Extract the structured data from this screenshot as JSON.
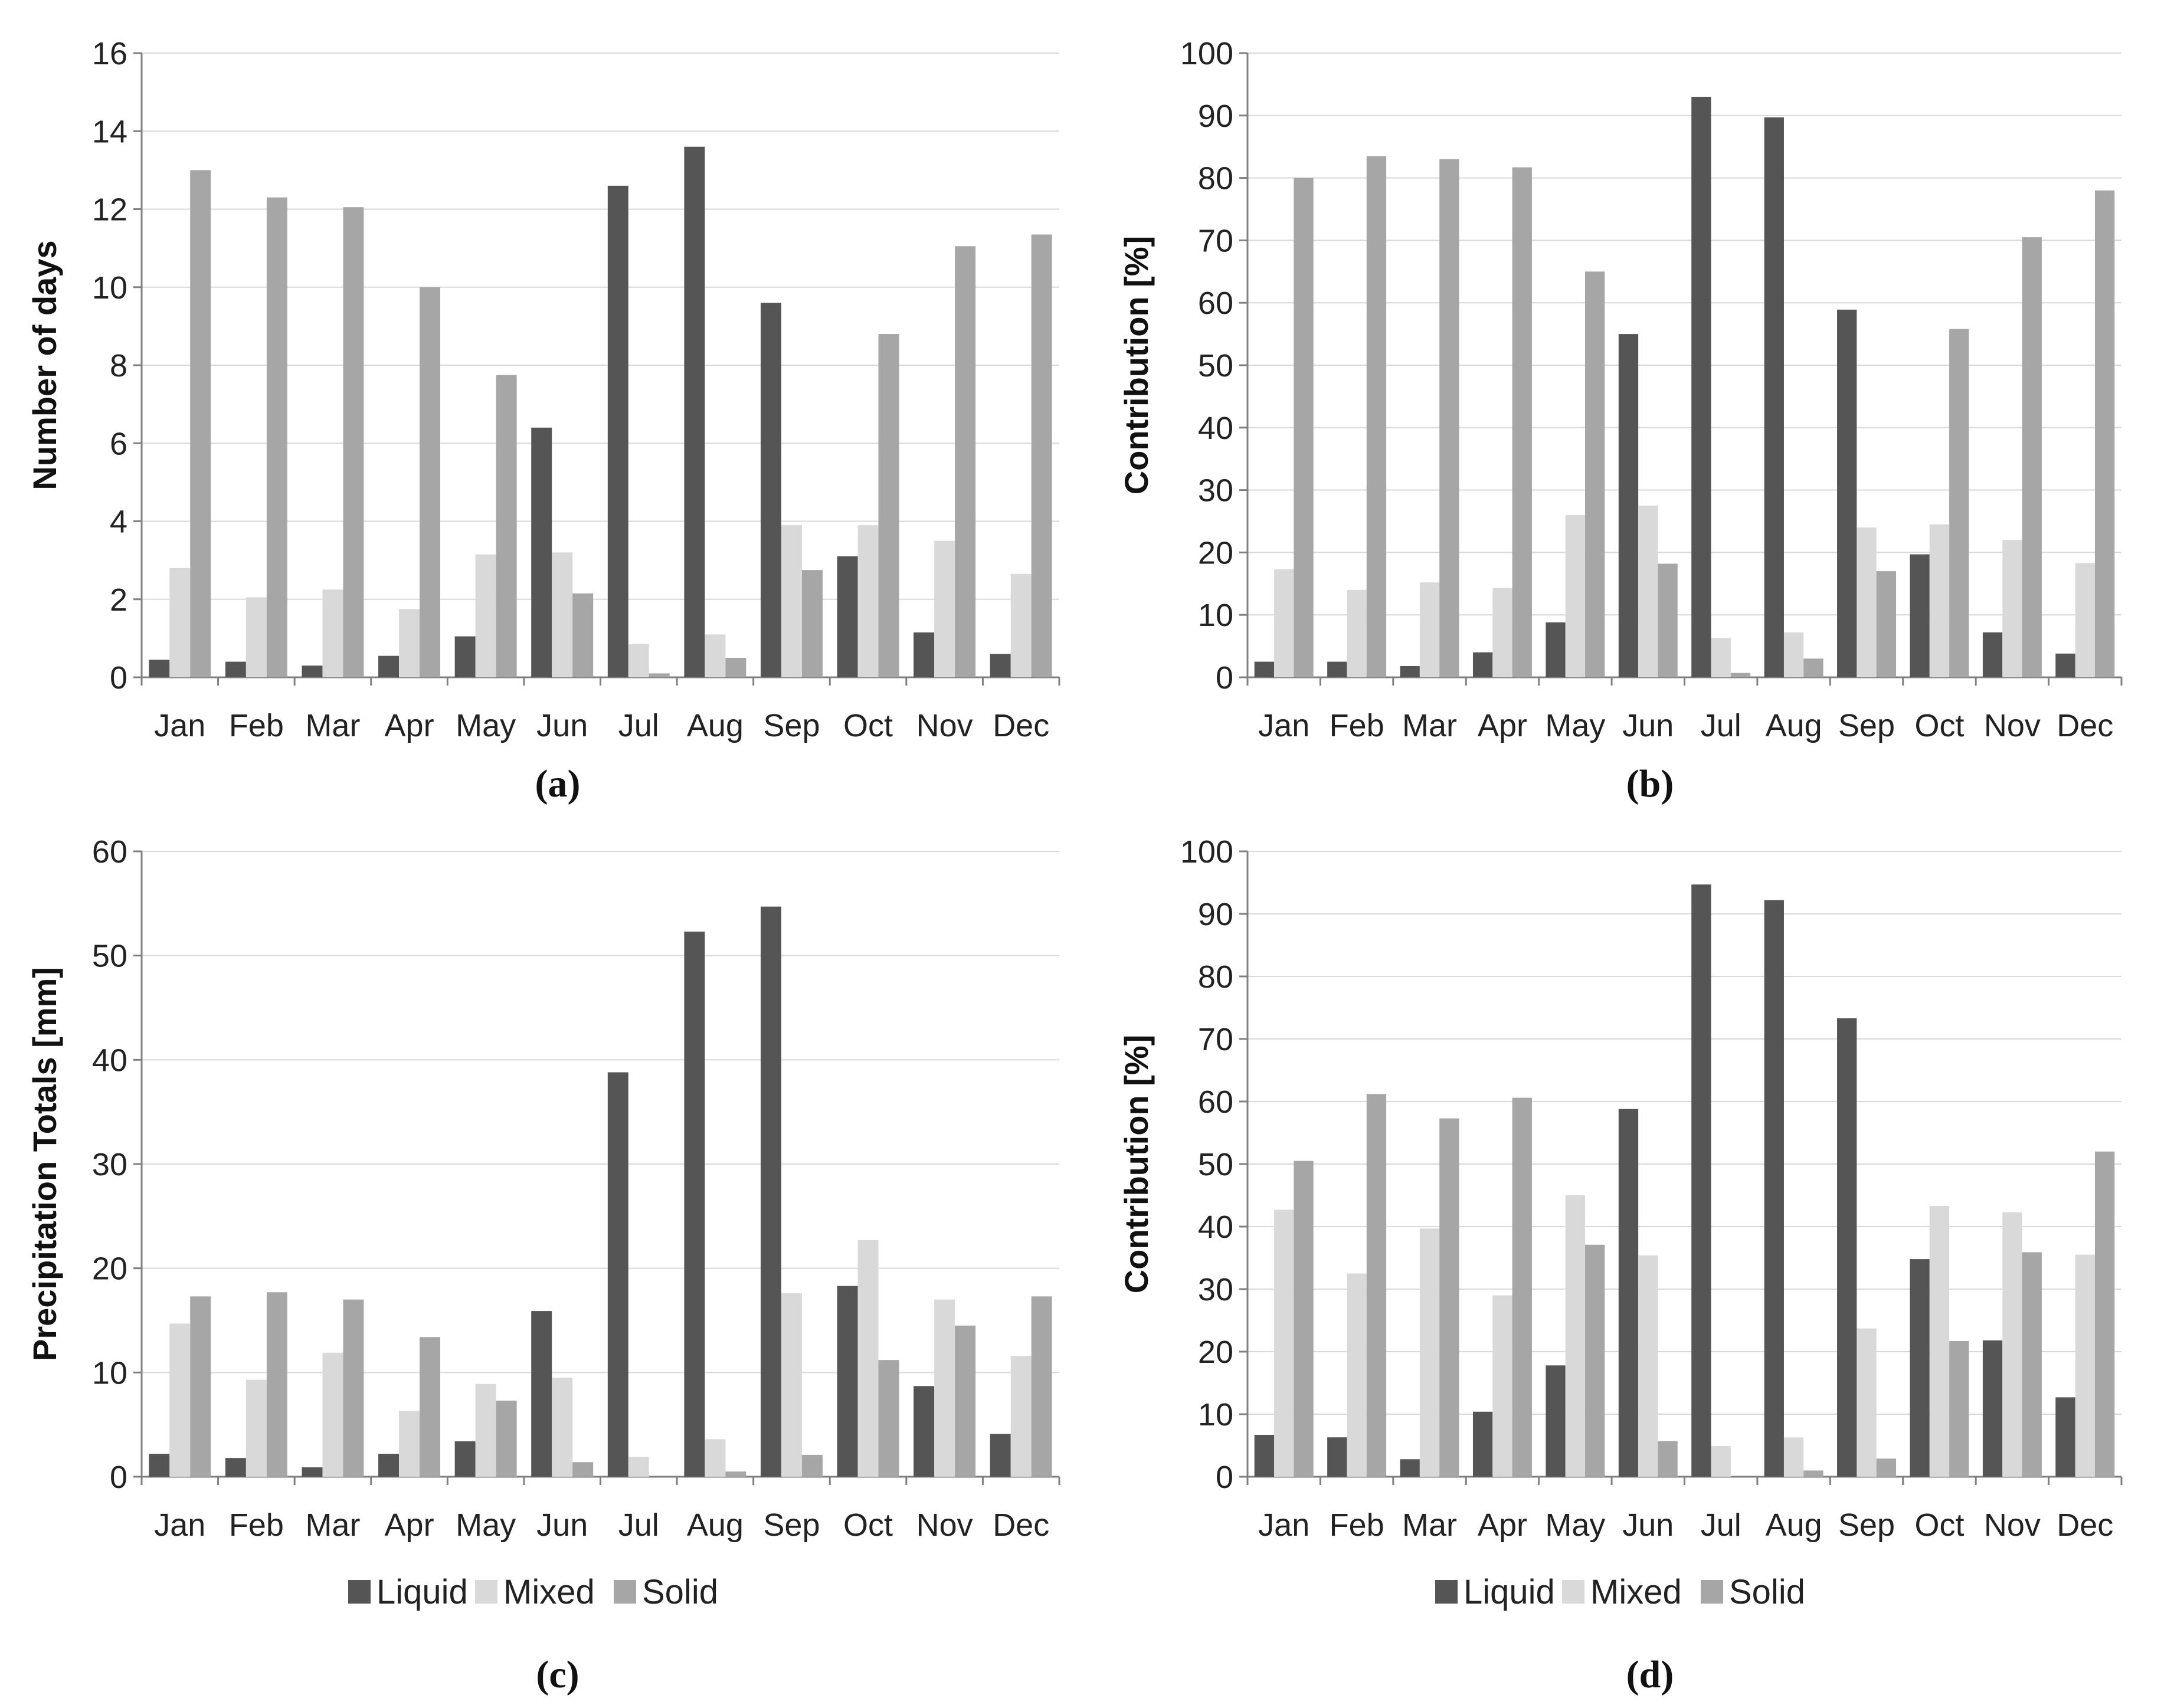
{
  "colors": {
    "Liquid": "#555555",
    "Mixed": "#d9d9d9",
    "Solid": "#a6a6a6",
    "grid": "#d9d9d9",
    "axis": "#808080"
  },
  "legend": {
    "series": [
      "Liquid",
      "Mixed",
      "Solid"
    ]
  },
  "chart_data": [
    {
      "panel_label": "(a)",
      "type": "bar",
      "title": "",
      "xlabel": "",
      "ylabel": "Number of days",
      "ylim": [
        0,
        16
      ],
      "ytick_step": 2,
      "grid": true,
      "show_legend": false,
      "categories": [
        "Jan",
        "Feb",
        "Mar",
        "Apr",
        "May",
        "Jun",
        "Jul",
        "Aug",
        "Sep",
        "Oct",
        "Nov",
        "Dec"
      ],
      "series": [
        {
          "name": "Liquid",
          "values": [
            0.45,
            0.4,
            0.3,
            0.55,
            1.05,
            6.4,
            12.6,
            13.6,
            9.6,
            3.1,
            1.15,
            0.6
          ]
        },
        {
          "name": "Mixed",
          "values": [
            2.8,
            2.05,
            2.25,
            1.75,
            3.15,
            3.2,
            0.85,
            1.1,
            3.9,
            3.9,
            3.5,
            2.65
          ]
        },
        {
          "name": "Solid",
          "values": [
            13.0,
            12.3,
            12.05,
            10.0,
            7.75,
            2.15,
            0.1,
            0.5,
            2.75,
            8.8,
            11.05,
            11.35
          ]
        }
      ]
    },
    {
      "panel_label": "(b)",
      "type": "bar",
      "title": "",
      "xlabel": "",
      "ylabel": "Contribution [%]",
      "ylim": [
        0,
        100
      ],
      "ytick_step": 10,
      "grid": true,
      "show_legend": false,
      "categories": [
        "Jan",
        "Feb",
        "Mar",
        "Apr",
        "May",
        "Jun",
        "Jul",
        "Aug",
        "Sep",
        "Oct",
        "Nov",
        "Dec"
      ],
      "series": [
        {
          "name": "Liquid",
          "values": [
            2.5,
            2.5,
            1.8,
            4.0,
            8.8,
            55.0,
            93.0,
            89.7,
            58.9,
            19.7,
            7.2,
            3.8
          ]
        },
        {
          "name": "Mixed",
          "values": [
            17.3,
            14.0,
            15.2,
            14.3,
            26.0,
            27.5,
            6.3,
            7.2,
            24.0,
            24.5,
            22.0,
            18.3
          ]
        },
        {
          "name": "Solid",
          "values": [
            80.0,
            83.5,
            83.0,
            81.7,
            65.0,
            18.2,
            0.7,
            3.0,
            17.0,
            55.8,
            70.5,
            78.0
          ]
        }
      ]
    },
    {
      "panel_label": "(c)",
      "type": "bar",
      "title": "",
      "xlabel": "",
      "ylabel": "Precipitation Totals [mm]",
      "ylim": [
        0,
        60
      ],
      "ytick_step": 10,
      "grid": true,
      "show_legend": true,
      "categories": [
        "Jan",
        "Feb",
        "Mar",
        "Apr",
        "May",
        "Jun",
        "Jul",
        "Aug",
        "Sep",
        "Oct",
        "Nov",
        "Dec"
      ],
      "series": [
        {
          "name": "Liquid",
          "values": [
            2.2,
            1.8,
            0.9,
            2.2,
            3.4,
            15.9,
            38.8,
            52.3,
            54.7,
            18.3,
            8.7,
            4.1
          ]
        },
        {
          "name": "Mixed",
          "values": [
            14.7,
            9.3,
            11.9,
            6.3,
            8.9,
            9.5,
            1.9,
            3.6,
            17.6,
            22.7,
            17.0,
            11.6
          ]
        },
        {
          "name": "Solid",
          "values": [
            17.3,
            17.7,
            17.0,
            13.4,
            7.3,
            1.4,
            0.0,
            0.5,
            2.1,
            11.2,
            14.5,
            17.3
          ]
        }
      ]
    },
    {
      "panel_label": "(d)",
      "type": "bar",
      "title": "",
      "xlabel": "",
      "ylabel": "Contribution [%]",
      "ylim": [
        0,
        100
      ],
      "ytick_step": 10,
      "grid": true,
      "show_legend": true,
      "categories": [
        "Jan",
        "Feb",
        "Mar",
        "Apr",
        "May",
        "Jun",
        "Jul",
        "Aug",
        "Sep",
        "Oct",
        "Nov",
        "Dec"
      ],
      "series": [
        {
          "name": "Liquid",
          "values": [
            6.7,
            6.3,
            2.8,
            10.4,
            17.8,
            58.8,
            94.7,
            92.2,
            73.3,
            34.8,
            21.8,
            12.7
          ]
        },
        {
          "name": "Mixed",
          "values": [
            42.7,
            32.5,
            39.7,
            29.0,
            45.0,
            35.4,
            4.9,
            6.3,
            23.7,
            43.3,
            42.3,
            35.5
          ]
        },
        {
          "name": "Solid",
          "values": [
            50.5,
            61.2,
            57.3,
            60.6,
            37.1,
            5.7,
            0.0,
            1.0,
            2.9,
            21.7,
            35.9,
            52.0
          ]
        }
      ]
    }
  ]
}
